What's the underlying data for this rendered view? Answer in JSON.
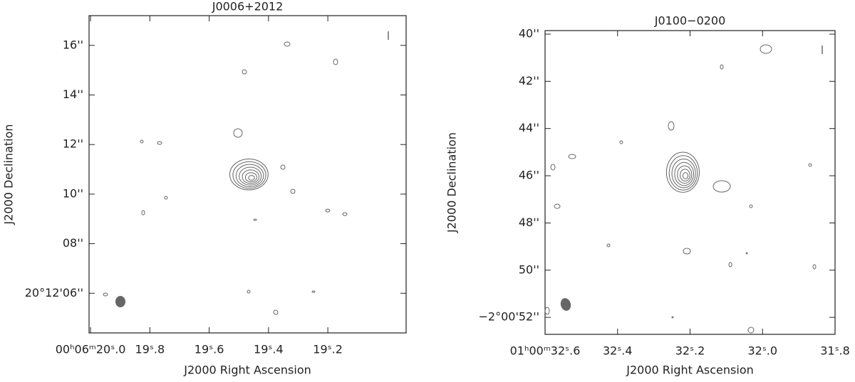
{
  "chart_data": [
    {
      "type": "contour",
      "title": "J0006+2012",
      "xlabel": "J2000 Right Ascension",
      "ylabel": "J2000 Declination",
      "xlim": [
        20.005,
        18.936
      ],
      "ylim": [
        4.4,
        17.2
      ],
      "xticks": [
        {
          "value": 20.0,
          "label": "00ʰ06ᵐ20ˢ.0"
        },
        {
          "value": 19.8,
          "label": "19ˢ.8"
        },
        {
          "value": 19.6,
          "label": "19ˢ.6"
        },
        {
          "value": 19.4,
          "label": "19ˢ.4"
        },
        {
          "value": 19.2,
          "label": "19ˢ.2"
        }
      ],
      "yticks": [
        {
          "value": 6,
          "label": "20°12'06''"
        },
        {
          "value": 8,
          "label": "08''"
        },
        {
          "value": 10,
          "label": "10''"
        },
        {
          "value": 12,
          "label": "12''"
        },
        {
          "value": 14,
          "label": "14''"
        },
        {
          "value": 16,
          "label": "16''"
        }
      ]
    },
    {
      "type": "contour",
      "title": "J0100−0200",
      "xlabel": "J2000 Right Ascension",
      "ylabel": "J2000 Declination",
      "xlim": [
        32.6,
        31.8
      ],
      "ylim": [
        52.72,
        39.85
      ],
      "xticks": [
        {
          "value": 32.6,
          "label": "01ʰ00ᵐ32ˢ.6"
        },
        {
          "value": 32.4,
          "label": "32ˢ.4"
        },
        {
          "value": 32.2,
          "label": "32ˢ.2"
        },
        {
          "value": 32.0,
          "label": "32ˢ.0"
        },
        {
          "value": 31.8,
          "label": "31ˢ.8"
        }
      ],
      "yticks": [
        {
          "value": 40,
          "label": "40''"
        },
        {
          "value": 42,
          "label": "42''"
        },
        {
          "value": 44,
          "label": "44''"
        },
        {
          "value": 46,
          "label": "46''"
        },
        {
          "value": 48,
          "label": "48''"
        },
        {
          "value": 50,
          "label": "50''"
        },
        {
          "value": 52,
          "label": "−2°00'52''"
        }
      ]
    }
  ]
}
